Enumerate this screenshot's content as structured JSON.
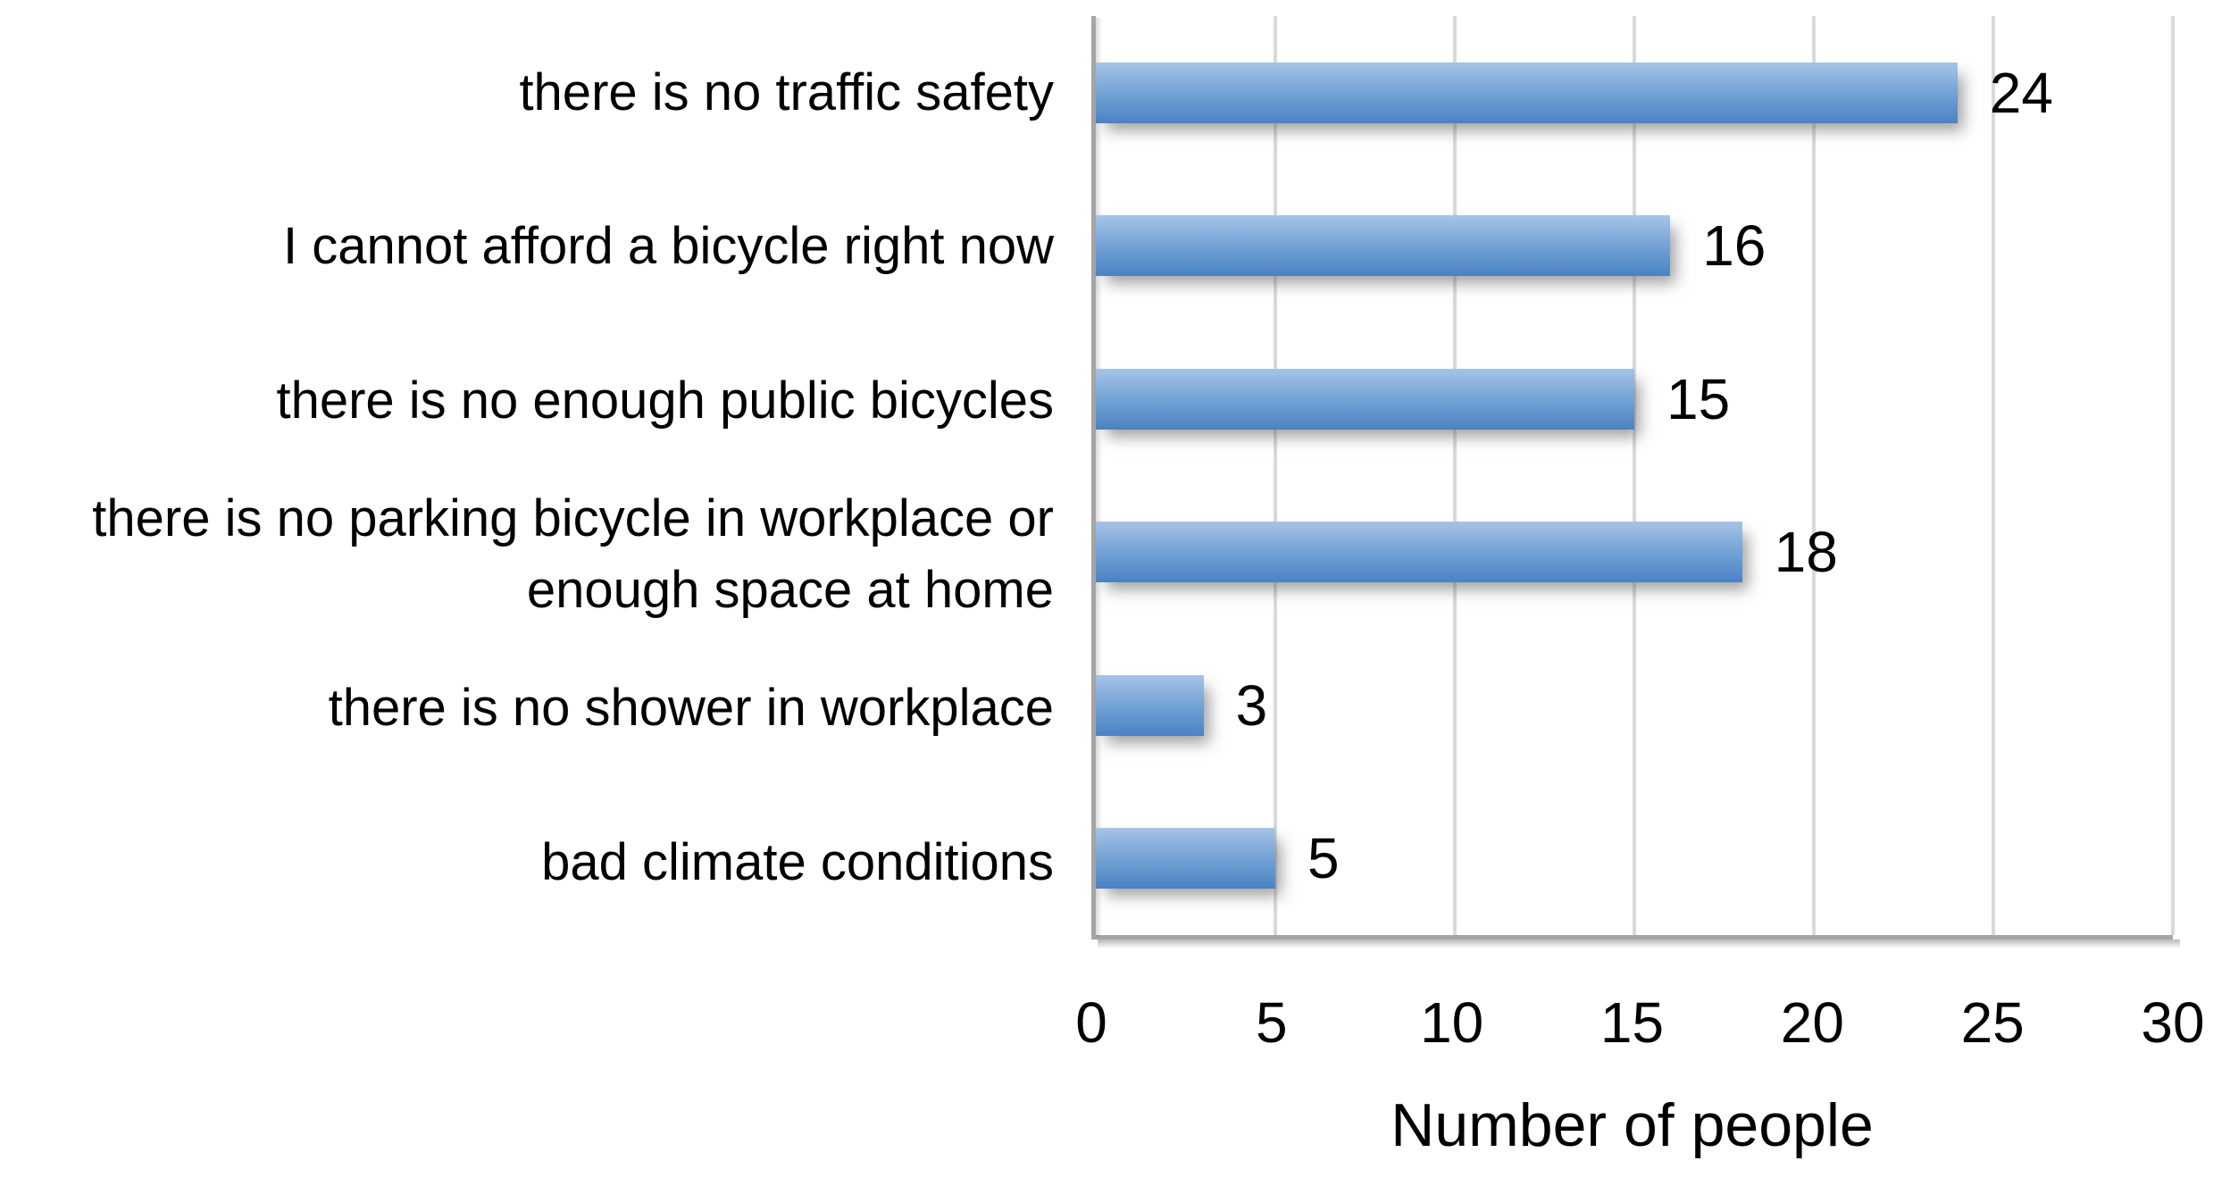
{
  "chart_data": {
    "type": "bar",
    "orientation": "horizontal",
    "categories": [
      "there is no traffic safety",
      "I cannot afford a bicycle right now",
      "there is no enough public bicycles",
      "there is no parking bicycle in workplace or enough space at home",
      "there is no shower in workplace",
      "bad climate conditions"
    ],
    "values": [
      24,
      16,
      15,
      18,
      3,
      5
    ],
    "data_labels": [
      24,
      16,
      15,
      18,
      3,
      5
    ],
    "title": "",
    "xlabel": "Number of people",
    "ylabel": "",
    "xlim": [
      0,
      30
    ],
    "xticks": [
      0,
      5,
      10,
      15,
      20,
      25,
      30
    ],
    "grid": true,
    "legend": false
  },
  "colors": {
    "bar_gradient_top": "#a6c3e7",
    "bar_gradient_mid": "#6f9fd4",
    "bar_gradient_bottom": "#4a82c2",
    "gridline": "#d9d9d9",
    "axis_line": "#a6a6a6",
    "text": "#000000",
    "background": "#ffffff"
  }
}
